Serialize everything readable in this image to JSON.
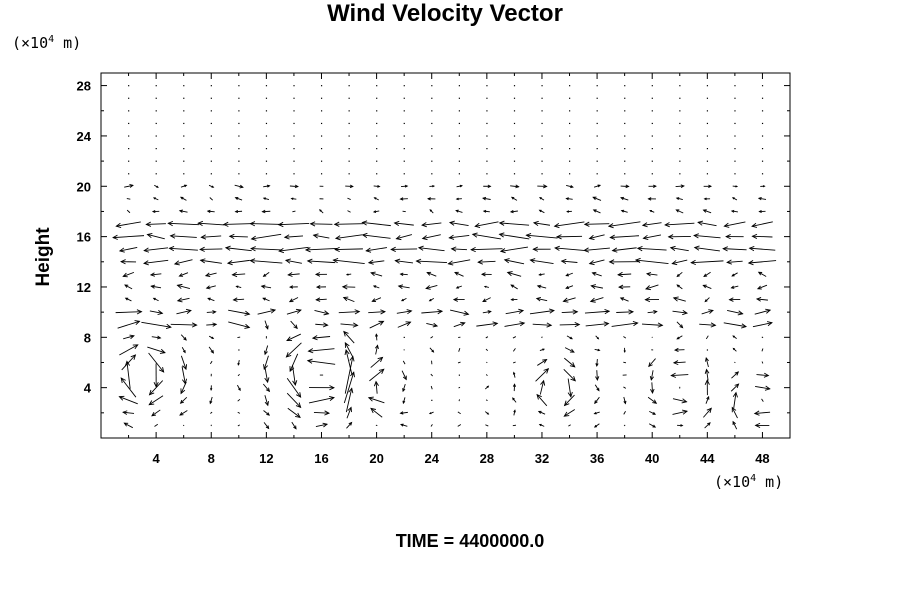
{
  "chart_data": {
    "type": "vector field",
    "title": "Wind Velocity Vector",
    "ylabel": "Height",
    "xlabel": "",
    "y_unit": {
      "prefix": "(×10",
      "exp": "4",
      "suffix": " m)"
    },
    "x_unit": {
      "prefix": "(×10",
      "exp": "4",
      "suffix": " m)"
    },
    "xlim": [
      0,
      50
    ],
    "ylim": [
      0,
      29
    ],
    "x_ticks": [
      4,
      8,
      12,
      16,
      20,
      24,
      28,
      32,
      36,
      40,
      44,
      48
    ],
    "y_ticks": [
      4,
      8,
      12,
      16,
      20,
      24,
      28
    ],
    "grid_x_step": 2,
    "grid_y_step": 1,
    "vector_scale": 0.9,
    "description_of_field": "upper layer ~y 18-20 mostly weak; strong leftward flow y 13-18; mixed near y 11-12; rightward flow y 9-10; recirculating cells below y 9",
    "bands": [
      {
        "ymin": 21,
        "ymax": 28,
        "u": 0,
        "v": 0
      },
      {
        "ymin": 20,
        "ymax": 20,
        "u": 0.6,
        "v": 0
      },
      {
        "ymin": 18,
        "ymax": 19,
        "u": -0.5,
        "v": 0.1
      },
      {
        "ymin": 14,
        "ymax": 17,
        "u": -2.2,
        "v": 0
      },
      {
        "ymin": 11,
        "ymax": 13,
        "u": -0.9,
        "v": 0
      },
      {
        "ymin": 9,
        "ymax": 10,
        "u": 1.8,
        "v": 0
      },
      {
        "ymin": 1,
        "ymax": 8,
        "u": 0,
        "v": 0
      }
    ],
    "cells": [
      {
        "x": 3,
        "y": 5,
        "r": 3.5,
        "strength": 2.6,
        "dir": -1
      },
      {
        "x": 16,
        "y": 5,
        "r": 4,
        "strength": 2.8,
        "dir": 1
      },
      {
        "x": 20,
        "y": 4,
        "r": 3,
        "strength": 1.8,
        "dir": -1
      },
      {
        "x": 33,
        "y": 4,
        "r": 3,
        "strength": 1.8,
        "dir": -1
      },
      {
        "x": 42,
        "y": 4,
        "r": 3,
        "strength": 1.6,
        "dir": 1
      },
      {
        "x": 48,
        "y": 3,
        "r": 2.5,
        "strength": 1.8,
        "dir": -1
      }
    ]
  },
  "caption": {
    "label": "TIME = 4400000.0"
  }
}
